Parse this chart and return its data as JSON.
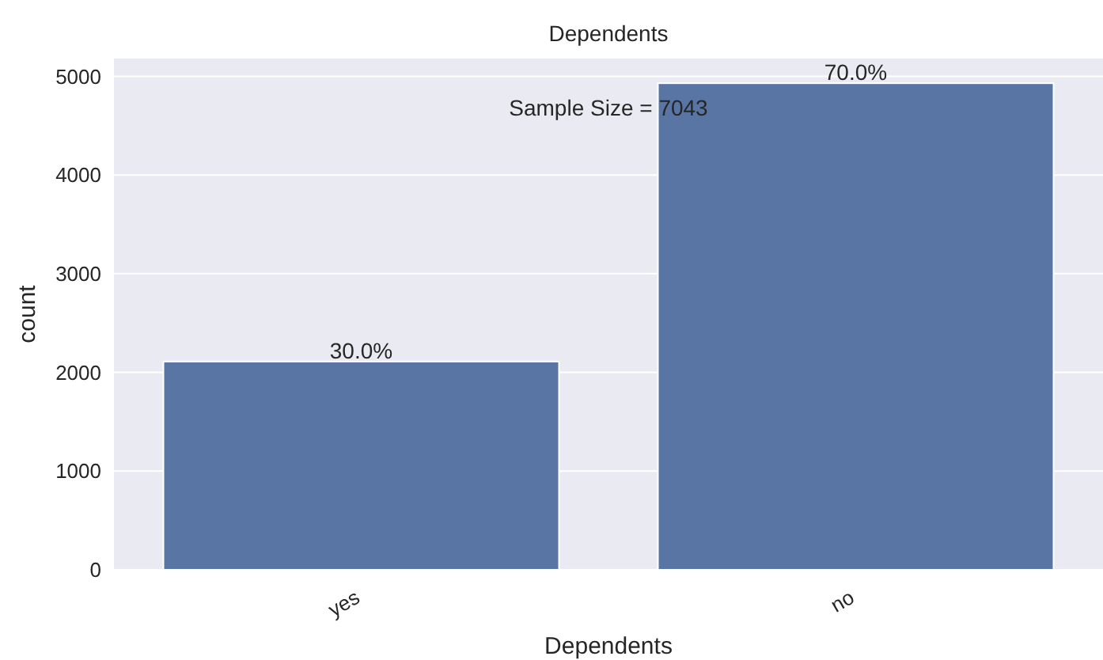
{
  "chart_data": {
    "type": "bar",
    "title": "Dependents",
    "xlabel": "Dependents",
    "ylabel": "count",
    "categories": [
      "yes",
      "no"
    ],
    "values": [
      2110,
      4930
    ],
    "color": "#5875a4",
    "ylim": [
      0,
      5180
    ],
    "yticks": [
      0,
      1000,
      2000,
      3000,
      4000,
      5000
    ],
    "grid": "y",
    "annotations": [
      "Sample Size = 7043",
      {
        "text": "30.0%",
        "x": "yes",
        "y": 2110
      },
      {
        "text": "70.0%",
        "x": "no",
        "y": 4930
      }
    ]
  }
}
